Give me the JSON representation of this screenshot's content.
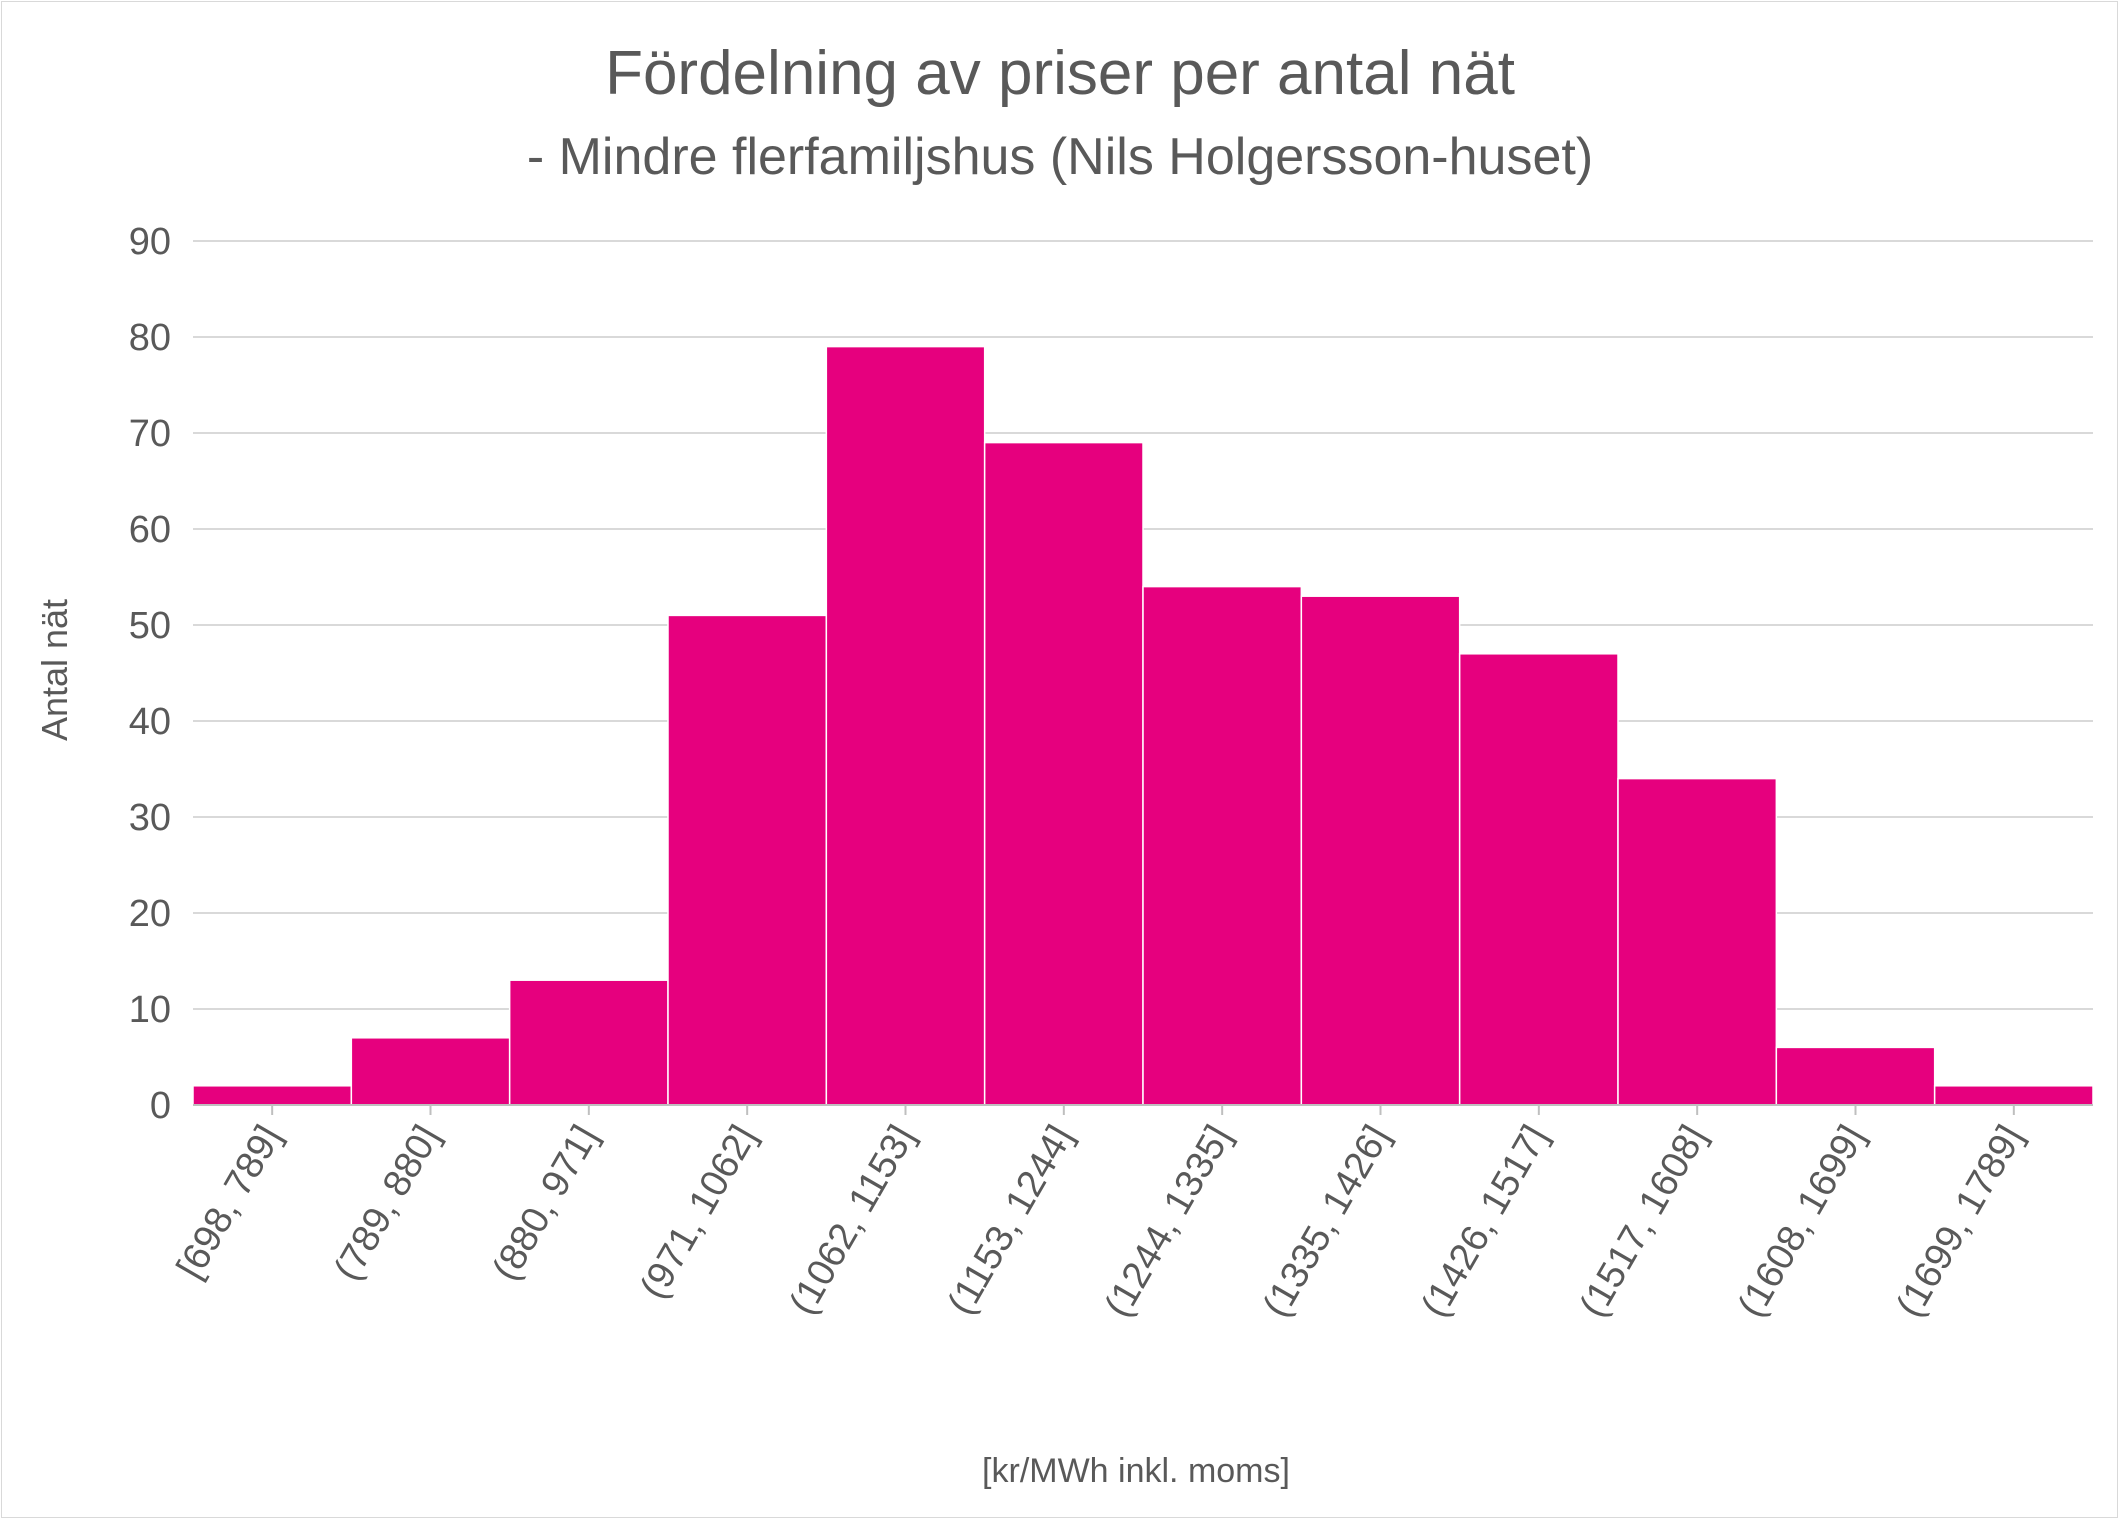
{
  "chart_data": {
    "type": "bar",
    "title": "Fördelning av priser per antal nät",
    "subtitle": "- Mindre flerfamiljshus (Nils Holgersson-huset)",
    "xlabel": "[kr/MWh inkl. moms]",
    "ylabel": "Antal nät",
    "categories": [
      "[698, 789]",
      "(789, 880]",
      "(880, 971]",
      "(971, 1062]",
      "(1062, 1153]",
      "(1153, 1244]",
      "(1244, 1335]",
      "(1335, 1426]",
      "(1426, 1517]",
      "(1517, 1608]",
      "(1608, 1699]",
      "(1699, 1789]"
    ],
    "values": [
      2,
      7,
      13,
      51,
      79,
      69,
      54,
      53,
      47,
      34,
      6,
      2
    ],
    "ylim": [
      0,
      90
    ],
    "yticks": [
      0,
      10,
      20,
      30,
      40,
      50,
      60,
      70,
      80,
      90
    ],
    "grid": true,
    "legend": "none",
    "colors": {
      "bar": "#e6007e",
      "bar_edge": "#ffffff",
      "grid": "#d9d9d9",
      "axis": "#bfbfbf",
      "text": "#595959"
    }
  }
}
